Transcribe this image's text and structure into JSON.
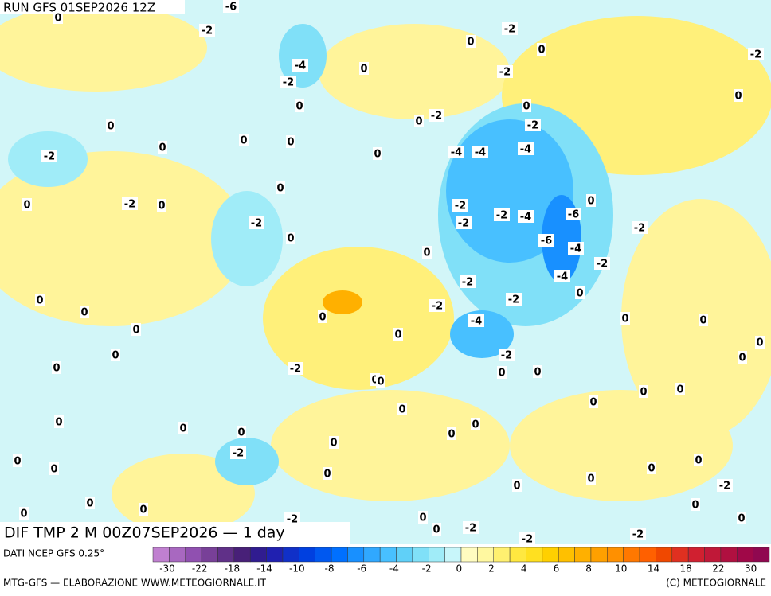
{
  "header": {
    "run": "RUN GFS 01SEP2026 12Z",
    "field": "DIF TMP 2 M 00Z07SEP2026 — 1 day"
  },
  "contour_labels": [
    0,
    -2,
    -2,
    -6,
    0,
    0,
    -2,
    -4,
    -2,
    0,
    -2,
    0,
    0,
    -2,
    0,
    -2,
    0,
    0,
    0,
    0,
    0,
    -2,
    0,
    -4,
    -4,
    -4,
    0,
    -2,
    0,
    0,
    -2,
    -2,
    -4,
    -6,
    0,
    -2,
    -2,
    -2,
    0,
    -6,
    -4,
    0,
    -2,
    -4,
    -2,
    -2,
    0,
    0,
    0,
    -2,
    0,
    -4,
    0,
    0,
    0,
    0,
    0,
    -2,
    0,
    -2,
    0,
    0,
    0,
    0,
    0,
    0,
    0,
    0,
    0,
    0,
    0,
    0,
    0,
    0,
    0,
    -2,
    0,
    0,
    0,
    0,
    0,
    0,
    0,
    -2,
    0,
    0,
    0,
    0,
    0,
    -2,
    0,
    0,
    -2,
    -2,
    -2,
    0
  ],
  "legend": {
    "source": "DATI NCEP GFS 0.25°",
    "colors": [
      "#c080d0",
      "#a868c0",
      "#9050b0",
      "#784098",
      "#603088",
      "#482078",
      "#301c90",
      "#2020b0",
      "#1030c8",
      "#0040e0",
      "#0058f0",
      "#0070ff",
      "#1890ff",
      "#30a8ff",
      "#48c0ff",
      "#60d0f8",
      "#80e0f8",
      "#a0ecf8",
      "#c8f6fa",
      "#fffcc0",
      "#fff8a0",
      "#fff070",
      "#ffe840",
      "#ffe020",
      "#ffd000",
      "#ffc000",
      "#ffb000",
      "#ffa000",
      "#ff9000",
      "#ff7800",
      "#ff6000",
      "#f04800",
      "#e03020",
      "#d02030",
      "#c01838",
      "#b01040",
      "#a00848",
      "#900850"
    ],
    "ticks": [
      -30,
      -22,
      -18,
      -14,
      -10,
      -8,
      -6,
      -4,
      -2,
      0,
      2,
      4,
      6,
      8,
      10,
      14,
      18,
      22,
      30
    ]
  },
  "footer": {
    "left": "MTG-GFS — ELABORAZIONE WWW.METEOGIORNALE.IT",
    "right": "(C) METEOGIORNALE"
  }
}
